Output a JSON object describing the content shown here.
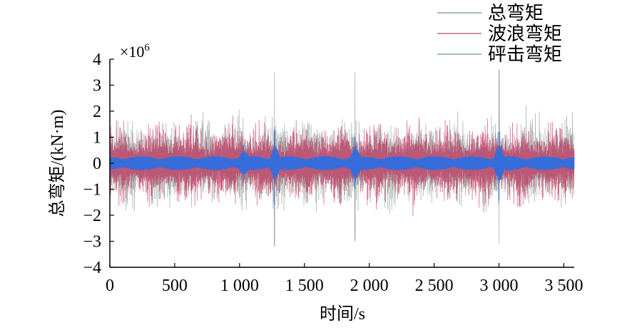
{
  "chart_data": {
    "type": "line",
    "title": "",
    "xlabel": "时间/s",
    "ylabel": "总弯矩/(kN·m)",
    "y_multiplier": "×10",
    "y_multiplier_exp": "6",
    "xlim": [
      0,
      3580
    ],
    "ylim": [
      -4,
      4
    ],
    "xticks": [
      0,
      500,
      1000,
      1500,
      2000,
      2500,
      3000,
      3500
    ],
    "xtick_labels": [
      "0",
      "500",
      "1 000",
      "1 500",
      "2 000",
      "2 500",
      "3 000",
      "3 500"
    ],
    "yticks": [
      -4,
      -3,
      -2,
      -1,
      0,
      1,
      2,
      3,
      4
    ],
    "ytick_labels": [
      "−4",
      "−3",
      "−2",
      "−1",
      "0",
      "1",
      "2",
      "3",
      "4"
    ],
    "grid": false,
    "legend_position": "top-right",
    "series": [
      {
        "name": "总弯矩",
        "color": "#8e9c96",
        "legend_color": "#a9b9b1",
        "typical_amplitude": 1.6,
        "peak_events": [
          {
            "x": 1270,
            "max": 3.5,
            "min": -3.2
          },
          {
            "x": 1890,
            "max": 3.5,
            "min": -3.0
          },
          {
            "x": 3000,
            "max": 3.6,
            "min": -3.1
          }
        ]
      },
      {
        "name": "波浪弯矩",
        "color": "#c2305e",
        "legend_color": "#c990a6",
        "typical_amplitude": 1.5,
        "peak_events": []
      },
      {
        "name": "砰击弯矩",
        "color": "#2f6fe0",
        "legend_color": "#9fbfb0",
        "typical_amplitude": 0.25,
        "peak_events": [
          {
            "x": 1030,
            "max": 0.7,
            "min": -0.7
          },
          {
            "x": 1270,
            "max": 1.3,
            "min": -1.6
          },
          {
            "x": 1890,
            "max": 1.0,
            "min": -1.0
          },
          {
            "x": 3000,
            "max": 1.2,
            "min": -1.4
          }
        ]
      }
    ]
  }
}
